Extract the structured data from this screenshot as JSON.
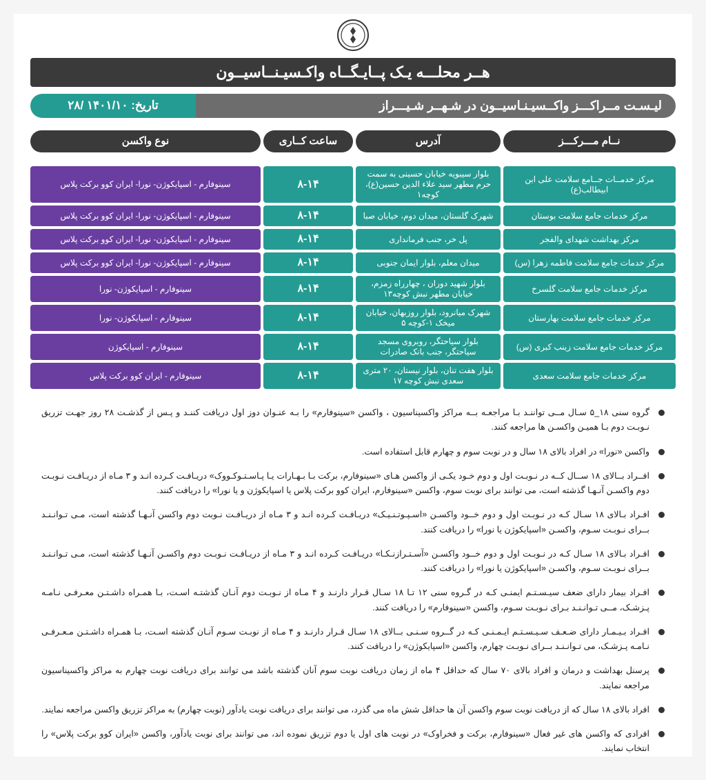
{
  "header": {
    "banner": "هــر محلـــه یـک پــایـگــاه واکـسیـنــاسیــون",
    "title": "لیـسـت مــراکـــز واکــسیـنـاسیــون در شـهــر شـیـــراز",
    "date_label": "تاریخ:",
    "date_value": "۱۴۰۱/۱۰ /۲۸"
  },
  "columns": {
    "name": "نــام مـــرکـــز",
    "address": "آدرس",
    "hours": "ساعت کــاری",
    "vaccine": "نوع واکسن"
  },
  "rows": [
    {
      "name": "مرکز خدمــات جــامع سلامت علی ابن ابیطالب(ع)",
      "address": "بلوار سیبویه خیابان حسینی به سمت حرم مطهر سید علاء الدین حسین(ع)، کوچه۱",
      "hours": "۸-۱۴",
      "vaccine": "سینوفارم - اسپایکوژن- نورا- ایران کوو برکت پلاس"
    },
    {
      "name": "مرکز خدمات جامع سلامت بوستان",
      "address": "شهرک گلستان، میدان دوم، خیابان صبا",
      "hours": "۸-۱۴",
      "vaccine": "سینوفارم - اسپایکوژن- نورا- ایران کوو برکت پلاس"
    },
    {
      "name": "مرکز بهداشت شهدای والفجر",
      "address": "پل خر، جنب فرمانداری",
      "hours": "۸-۱۴",
      "vaccine": "سینوفارم - اسپایکوژن- نورا- ایران کوو برکت پلاس"
    },
    {
      "name": "مرکز خدمات جامع سلامت فاطمه زهرا (س)",
      "address": "میدان معلم، بلوار ایمان جنوبی",
      "hours": "۸-۱۴",
      "vaccine": "سینوفارم - اسپایکوژن- نورا- ایران کوو برکت پلاس"
    },
    {
      "name": "مرکز خدمات جامع سلامت گلسرخ",
      "address": "بلوار شهید دوران ، چهارراه زمزم، خیابان مطهر نبش کوچه۱۳",
      "hours": "۸-۱۴",
      "vaccine": "سینوفارم - اسپایکوژن- نورا"
    },
    {
      "name": "مرکز خدمات جامع سلامت بهارستان",
      "address": "شهرک میانرود، بلوار روزبهان، خیابان میخک ۱-کوچه ۵",
      "hours": "۸-۱۴",
      "vaccine": "سینوفارم - اسپایکوژن- نورا"
    },
    {
      "name": "مرکز خدمات جامع سلامت زینب کبری (س)",
      "address": "بلوار سیاحتگر، روبروی مسجد سیاحتگر، جنب بانک صادرات",
      "hours": "۸-۱۴",
      "vaccine": "سینوفارم - اسپایکوژن"
    },
    {
      "name": "مرکز خدمات جامع سلامت سعدی",
      "address": "بلوار هفت تنان، بلوار نیستان، ۲۰ متری سعدی نبش کوچه ۱۷",
      "hours": "۸-۱۴",
      "vaccine": "سینوفارم -  ایران کوو برکت پلاس"
    }
  ],
  "notes": [
    "گروه سنی ۱۸_۵ سـال مــی تواننـد بـا مراجعـه بــه مراکز واکسیناسیون ، واکسن «سینوفارم» را بـه عنـوان دوز اول دریافت کننـد و پـس از گذشـت ۲۸ روز جهـت تزریق نـوبـت دوم بـا همیـن واکسـن ها مراجعه کنند.",
    "واکسن «نورا» در افراد بالای ۱۸ سال و در نوبت سوم و چهارم قابل استفاده است.",
    "افــراد بــالای ۱۸ ســال کــه در نـوبـت اول و دوم خـود یکـی از واکسن هـای «سینوفارم، برکت بـا بـهـارات یـا پـاسـتـوکـووک» دریـافـت کـرده انـد و ۳ مـاه از دریـافـت نـوبـت دوم واکسـن آنـهـا گذشته است، می توانند برای نوبت سوم، واکسن «سینوفارم، ایران کوو برکت پلاس یا اسپایکوژن و یا نورا» را دریافت کنند.",
    "افـراد بـالای ۱۸ سـال کـه در نـوبـت اول و دوم خــود واکسـن «اسـپـوتـنـیـک» دریـافـت کـرده انـد و ۳ مـاه از دریـافـت نـوبت دوم واکسن آنـهـا گذشته است، مـی تـوانـنـد بــرای نـوبـت سـوم،  واکسـن «اسپایکوژن یا نورا» را دریافت کنند.",
    "افـراد بـالای ۱۸ سـال کـه در نـوبـت اول و دوم خــود واکسـن «آسـتـرازنـکـا» دریـافـت کـرده انـد و ۳ مـاه از دریـافـت نـوبـت دوم واکسـن آنـهـا گذشته است، مـی تـوانـنـد بــرای نـوبـت سـوم، واکسـن «اسپایکوژن یا نورا» را دریافت کنند.",
    "افـراد بیمار دارای ضعف سیـسـتـم ایمنـی کـه در گـروه سنی ۱۲ تـا ۱۸ سـال قـرار دارنـد و ۴ مـاه از نـوبـت دوم آنـان گذشتـه اسـت، بـا همـراه داشـتـن معـرفـی نـامـه پـزشـک، مــی تـوانـنـد بـرای نـوبـت سـوم، واکسن «سینوفارم» را دریافت کنند.",
    "افـراد بـیـمـار دارای ضـعـف سـیـسـتـم ایـمـنـی کـه در گــروه سـنـی بــالای ۱۸ سـال قـرار دارنـد و ۴ مـاه از نوبـت سـوم آنـان گذشته اسـت، بـا همـراه داشـتـن مـعـرفـی نـامـه پـزشـک، می تـوانـنـد بــرای نـوبـت چهارم، واکسن «اسپایکوژن» را دریافت کنند.",
    "پرسنل بهداشت و درمان و افراد بالای ۷۰ سال که حداقل ۴ ماه از زمان دریافت نوبت سوم آنان گذشته باشد می توانند برای دریافت نوبت چهارم به مراکز واکسیناسیون مراجعه نمایند.",
    "افراد بالای ۱۸ سال که از دریافت نوبت سوم واکسن آن ها حداقل شش ماه می گذرد، می توانند برای دریافت نوبت یادآور (نوبت چهارم) به مراکز تزریق واکسن مراجعه نمایند.",
    "افرادی که واکسن های غیر فعال  «سینوفارم، برکت و فخراوک» در نوبت های اول یا دوم تزریق نموده اند، می توانند برای نوبت یادآور، واکسن «ایران کوو برکت پلاس» را انتخاب نمایند."
  ],
  "colors": {
    "dark": "#3a3a3a",
    "gray": "#6d6d6d",
    "teal": "#259c93",
    "purple": "#6a3ea1",
    "bg": "#f5f5f5"
  }
}
